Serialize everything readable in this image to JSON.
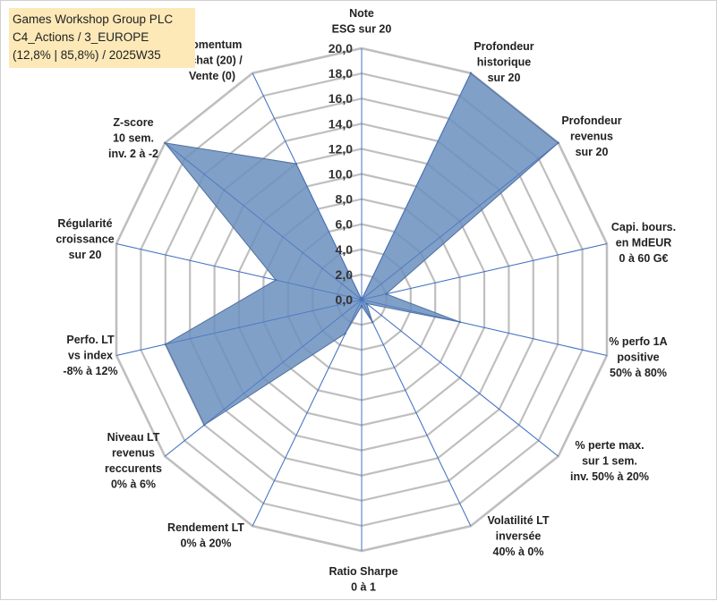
{
  "header": {
    "lines": [
      "Games Workshop Group PLC",
      "C4_Actions / 3_EUROPE",
      "(12,8% | 85,8%) / 2025W35"
    ]
  },
  "chart_data": {
    "type": "radar",
    "title": "Games Workshop Group PLC",
    "rmin": 0,
    "rmax": 20,
    "tick_step": 2,
    "tick_labels": [
      "0,0",
      "2,0",
      "4,0",
      "6,0",
      "8,0",
      "10,0",
      "12,0",
      "14,0",
      "16,0",
      "18,0",
      "20,0"
    ],
    "grid": true,
    "colors": {
      "fill": "#6a8fbe",
      "stroke": "#4f6f9f",
      "grid": "#bfbfbf",
      "spoke": "#4472c4",
      "title_bg": "#fde9b8"
    },
    "axes": [
      [
        "Note",
        "ESG sur 20"
      ],
      [
        "Profondeur",
        "historique",
        "sur 20"
      ],
      [
        "Profondeur",
        "revenus",
        "sur 20"
      ],
      [
        "Capi. bours.",
        "en MdEUR",
        "0 à 60 G€"
      ],
      [
        "% perfo 1A",
        "positive",
        "50% à 80%"
      ],
      [
        "% perte max.",
        "sur 1 sem.",
        "inv. 50% à 20%"
      ],
      [
        "Volatilité LT",
        "inversée",
        "40% à 0%"
      ],
      [
        "Ratio Sharpe",
        "0 à 1"
      ],
      [
        "Rendement LT",
        "0% à 20%"
      ],
      [
        "Niveau LT",
        "revenus",
        "reccurents",
        "0% à 6%"
      ],
      [
        "Perfo. LT",
        "vs index",
        "-8% à 12%"
      ],
      [
        "Régularité",
        "croissance",
        "sur 20"
      ],
      [
        "Z-score",
        "10 sem.",
        "inv. 2 à -2"
      ],
      [
        "Momentum",
        "Achat (20) /",
        "Vente (0)"
      ]
    ],
    "series": [
      {
        "values": [
          0.0,
          20.0,
          20.0,
          2.0,
          8.0,
          0.5,
          2.0,
          0.5,
          3.0,
          16.0,
          16.0,
          7.0,
          20.0,
          12.0
        ]
      }
    ]
  }
}
